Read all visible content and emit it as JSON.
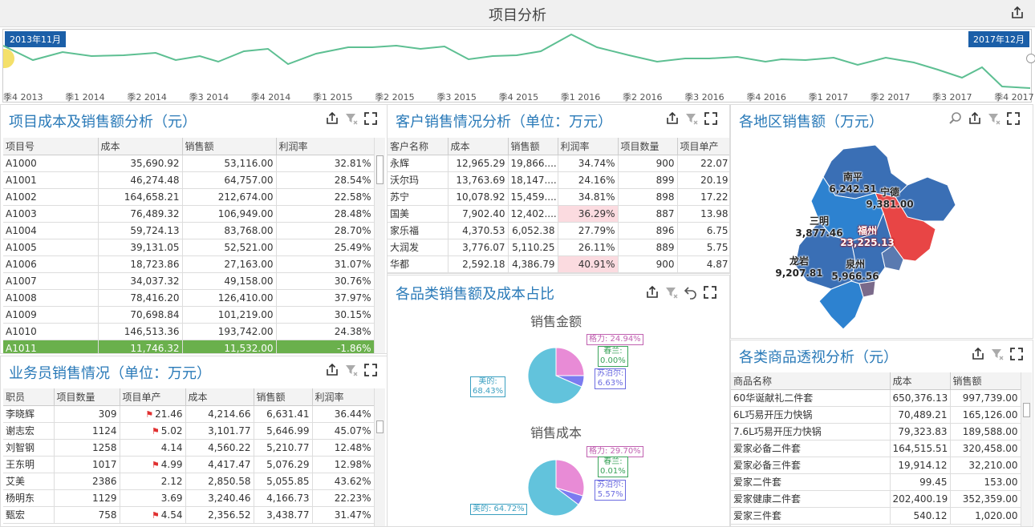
{
  "header": {
    "title": "项目分析"
  },
  "range": {
    "start_label": "2013年11月",
    "end_label": "2017年12月",
    "ticks": [
      "季4 2013",
      "季1 2014",
      "季2 2014",
      "季3 2014",
      "季4 2014",
      "季1 2015",
      "季2 2015",
      "季3 2015",
      "季4 2015",
      "季1 2016",
      "季2 2016",
      "季3 2016",
      "季4 2016",
      "季1 2017",
      "季2 2017",
      "季3 2017",
      "季4 2017"
    ]
  },
  "cost_panel": {
    "title": "项目成本及销售额分析（元）",
    "columns": [
      "项目号",
      "成本",
      "销售额",
      "利润率"
    ],
    "rows": [
      [
        "A1000",
        "35,690.92",
        "53,116.00",
        "32.81%"
      ],
      [
        "A1001",
        "46,274.48",
        "64,757.00",
        "28.54%"
      ],
      [
        "A1002",
        "164,658.21",
        "212,674.00",
        "22.58%"
      ],
      [
        "A1003",
        "76,489.32",
        "106,949.00",
        "28.48%"
      ],
      [
        "A1004",
        "59,724.13",
        "83,768.00",
        "28.70%"
      ],
      [
        "A1005",
        "39,131.05",
        "52,521.00",
        "25.49%"
      ],
      [
        "A1006",
        "18,723.86",
        "27,163.00",
        "31.07%"
      ],
      [
        "A1007",
        "34,037.32",
        "49,158.00",
        "30.76%"
      ],
      [
        "A1008",
        "78,416.20",
        "126,410.00",
        "37.97%"
      ],
      [
        "A1009",
        "70,698.84",
        "101,219.00",
        "30.15%"
      ],
      [
        "A1010",
        "146,513.36",
        "193,742.00",
        "24.38%"
      ],
      [
        "A1011",
        "11,746.32",
        "11,532.00",
        "-1.86%"
      ]
    ]
  },
  "sales_panel": {
    "title": "业务员销售情况（单位：万元）",
    "columns": [
      "职员",
      "项目数量",
      "项目单产",
      "成本",
      "销售额",
      "利润率"
    ],
    "rows": [
      [
        "李晓辉",
        "309",
        "21.46",
        "4,214.66",
        "6,631.41",
        "36.44%"
      ],
      [
        "谢志宏",
        "1124",
        "5.02",
        "3,101.77",
        "5,646.99",
        "45.07%"
      ],
      [
        "刘智钢",
        "1258",
        "4.14",
        "4,560.22",
        "5,210.77",
        "12.48%"
      ],
      [
        "王东明",
        "1017",
        "4.99",
        "4,417.47",
        "5,076.29",
        "12.98%"
      ],
      [
        "艾美",
        "2386",
        "2.12",
        "2,850.58",
        "5,055.85",
        "43.62%"
      ],
      [
        "杨明东",
        "1129",
        "3.69",
        "3,240.46",
        "4,166.73",
        "22.23%"
      ],
      [
        "甄宏",
        "758",
        "4.54",
        "2,356.52",
        "3,438.77",
        "31.47%"
      ]
    ]
  },
  "customer_panel": {
    "title": "客户销售情况分析（单位：万元）",
    "columns": [
      "客户名称",
      "成本",
      "销售额",
      "利润率",
      "项目数量",
      "项目单产"
    ],
    "rows": [
      [
        "永辉",
        "12,965.29",
        "19,866....",
        "34.74%",
        "900",
        "22.07"
      ],
      [
        "沃尔玛",
        "13,763.69",
        "18,147....",
        "24.16%",
        "899",
        "20.19"
      ],
      [
        "苏宁",
        "10,078.92",
        "15,459....",
        "34.81%",
        "898",
        "17.22"
      ],
      [
        "国美",
        "7,902.40",
        "12,402....",
        "36.29%",
        "887",
        "13.98"
      ],
      [
        "家乐福",
        "4,370.53",
        "6,052.38",
        "27.79%",
        "896",
        "6.75"
      ],
      [
        "大润发",
        "3,776.07",
        "5,110.25",
        "26.11%",
        "889",
        "5.75"
      ],
      [
        "华都",
        "2,592.18",
        "4,386.79",
        "40.91%",
        "900",
        "4.87"
      ]
    ]
  },
  "pie_panel": {
    "title": "各品类销售额及成本占比",
    "pie1": {
      "title": "销售金额",
      "labels": [
        "格力: 24.94%",
        "春兰:\n0.00%",
        "苏泊尔:\n6.63%",
        "美的:\n68.43%"
      ]
    },
    "pie2": {
      "title": "销售成本",
      "labels": [
        "格力: 29.70%",
        "春兰:\n0.01%",
        "苏泊尔:\n5.57%",
        "美的: 64.72%"
      ]
    }
  },
  "chart_data": [
    {
      "type": "pie",
      "title": "销售金额",
      "categories": [
        "格力",
        "春兰",
        "苏泊尔",
        "美的"
      ],
      "values": [
        24.94,
        0.0,
        6.63,
        68.43
      ],
      "colors": [
        "#e88bd6",
        "#3aa35a",
        "#7b7bf0",
        "#62c3dc"
      ]
    },
    {
      "type": "pie",
      "title": "销售成本",
      "categories": [
        "格力",
        "春兰",
        "苏泊尔",
        "美的"
      ],
      "values": [
        29.7,
        0.01,
        5.57,
        64.72
      ],
      "colors": [
        "#e88bd6",
        "#3aa35a",
        "#7b7bf0",
        "#62c3dc"
      ]
    }
  ],
  "map_panel": {
    "title": "各地区销售额（万元）",
    "regions": [
      {
        "name": "南平",
        "value": "6,242.31"
      },
      {
        "name": "宁德",
        "value": "9,381.00"
      },
      {
        "name": "三明",
        "value": "3,877.46"
      },
      {
        "name": "福州",
        "value": "23,225.13"
      },
      {
        "name": "龙岩",
        "value": "9,207.81"
      },
      {
        "name": "泉州",
        "value": "5,966.56"
      }
    ]
  },
  "goods_panel": {
    "title": "各类商品透视分析（元）",
    "columns": [
      "商品名称",
      "成本",
      "销售额"
    ],
    "rows": [
      [
        "60华诞献礼二件套",
        "650,376.13",
        "997,739.00"
      ],
      [
        "6L巧易开压力快锅",
        "70,489.21",
        "165,126.00"
      ],
      [
        "7.6L巧易开压力快锅",
        "79,323.83",
        "189,588.00"
      ],
      [
        "爱家必备二件套",
        "164,515.51",
        "320,458.00"
      ],
      [
        "爱家必备三件套",
        "19,914.12",
        "32,210.00"
      ],
      [
        "爱家二件套",
        "99.45",
        "153.00"
      ],
      [
        "爱家健康二件套",
        "202,400.19",
        "352,359.00"
      ],
      [
        "爱家三件套",
        "540.12",
        "1,020.00"
      ]
    ]
  }
}
